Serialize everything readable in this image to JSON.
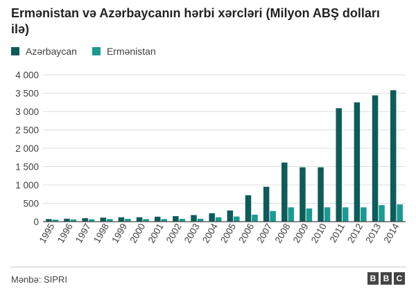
{
  "title": "Ermənistan və Azərbaycanın hərbi xərcləri (Milyon ABŞ dolları ilə)",
  "legend": {
    "azerbaijan": "Azərbaycan",
    "armenia": "Ermənistan"
  },
  "colors": {
    "azerbaijan": "#0d5c5a",
    "armenia": "#1a9a92",
    "grid": "#dcdcdc",
    "axis": "#444444"
  },
  "source": "Mənbə: SIPRI",
  "logo": [
    "B",
    "B",
    "C"
  ],
  "chart_data": {
    "type": "bar",
    "title": "Ermənistan və Azərbaycanın hərbi xərcləri (Milyon ABŞ dolları ilə)",
    "categories": [
      "1995",
      "1996",
      "1997",
      "1998",
      "1999",
      "2000",
      "2001",
      "2002",
      "2003",
      "2004",
      "2005",
      "2006",
      "2007",
      "2008",
      "2009",
      "2010",
      "2011",
      "2012",
      "2013",
      "2014"
    ],
    "series": [
      {
        "name": "Azərbaycan",
        "values": [
          70,
          80,
          95,
          110,
          120,
          120,
          135,
          150,
          180,
          230,
          305,
          720,
          950,
          1610,
          1480,
          1480,
          3090,
          3250,
          3440,
          3580
        ]
      },
      {
        "name": "Ermənistan",
        "values": [
          55,
          60,
          65,
          70,
          75,
          70,
          70,
          75,
          80,
          120,
          140,
          190,
          290,
          390,
          360,
          390,
          390,
          390,
          450,
          470
        ]
      }
    ],
    "yticks": [
      "0",
      "500",
      "1 000",
      "1 500",
      "2 000",
      "2 500",
      "3 000",
      "3 500",
      "4 000"
    ],
    "ylim": [
      0,
      4000
    ],
    "grid": true,
    "legend_position": "top-left"
  }
}
